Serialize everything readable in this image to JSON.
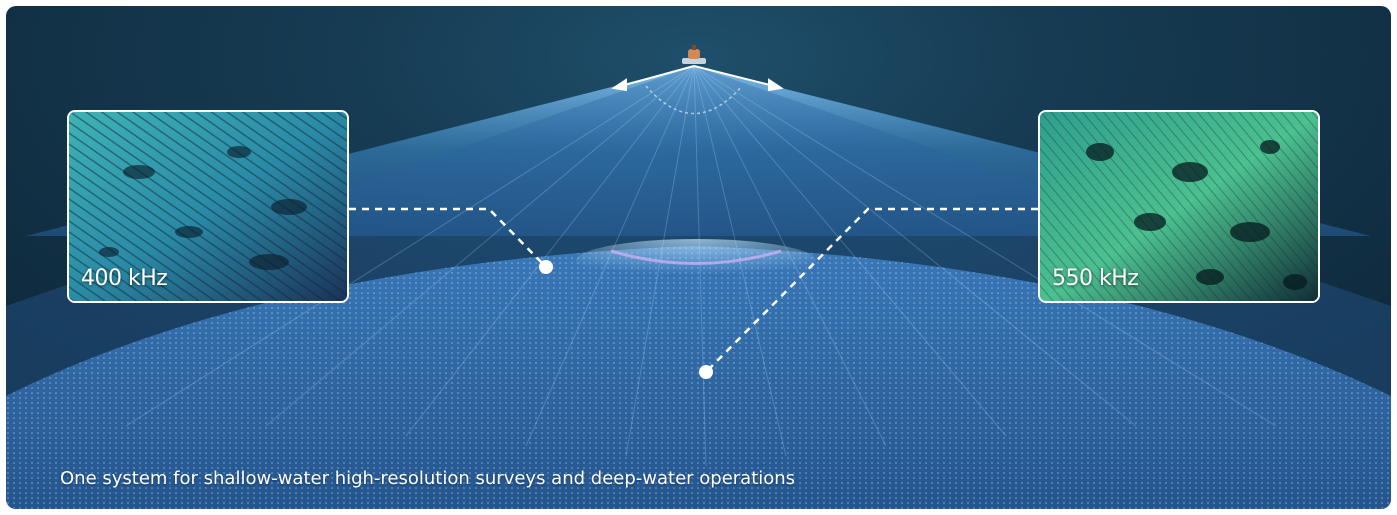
{
  "insets": [
    {
      "label": "400 kHz"
    },
    {
      "label": "550 kHz"
    }
  ],
  "caption": "One system for shallow-water high-resolution surveys and deep-water operations",
  "colors": {
    "background": "#163b52",
    "beam": "#4aa3e0",
    "seafloor": "#2f6aa8",
    "connector": "#ffffff"
  }
}
